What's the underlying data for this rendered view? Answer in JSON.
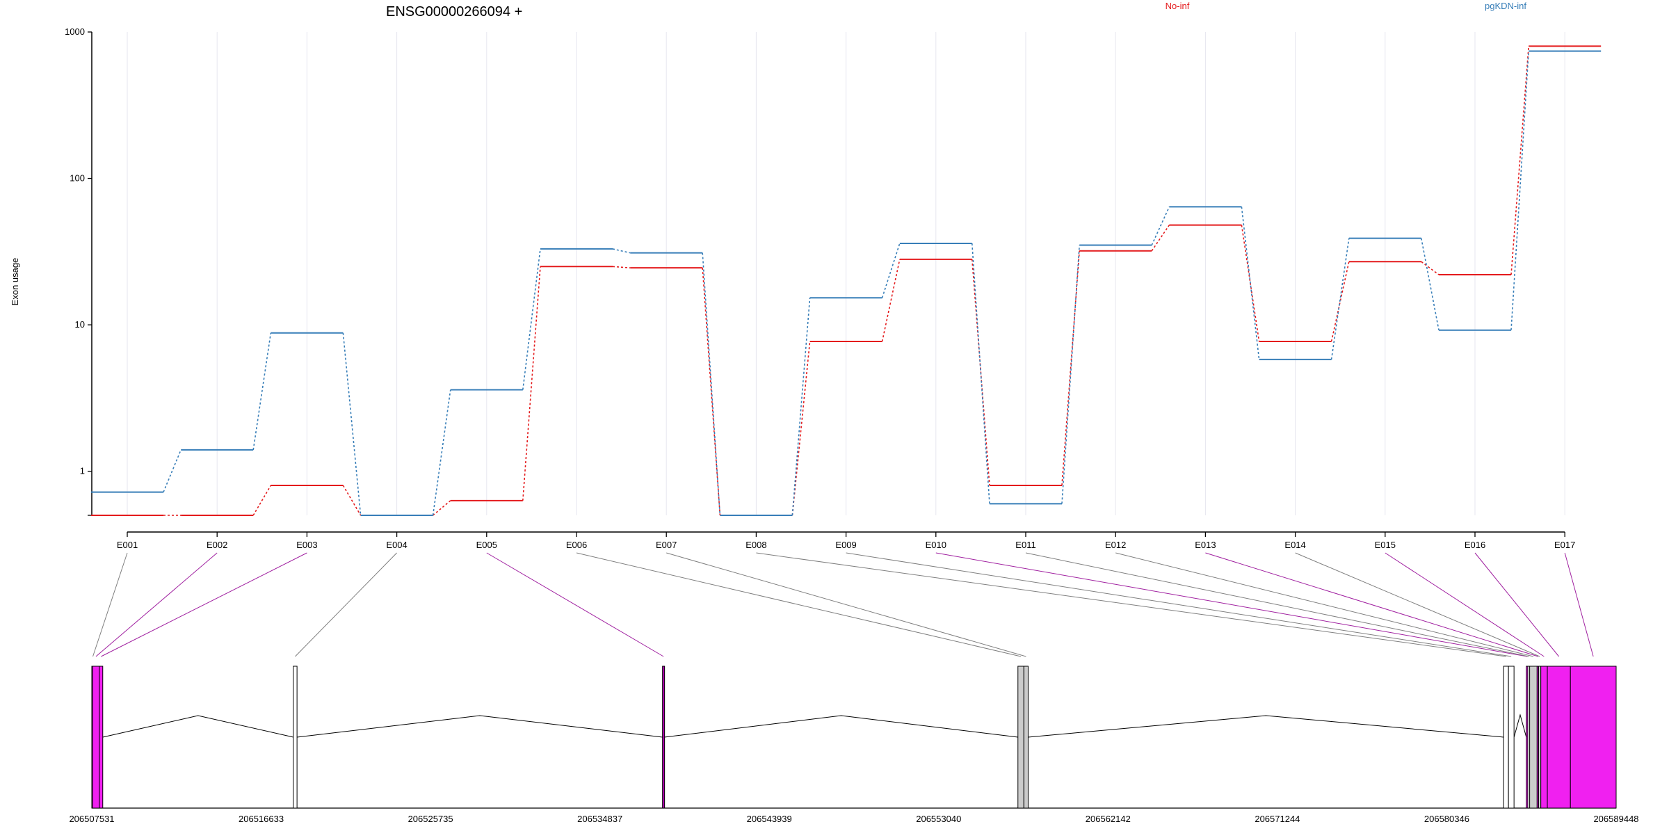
{
  "chart_data": {
    "type": "line",
    "title": "ENSG00000266094 +",
    "ylabel": "Exon usage",
    "xlabel": "",
    "y_scale": "log",
    "y_ticks": [
      1,
      10,
      100,
      1000
    ],
    "y_tick_labels": [
      "1",
      "10",
      "100",
      "1000"
    ],
    "ylim": [
      0.5,
      1000
    ],
    "grid": "vertical",
    "categories": [
      "E001",
      "E002",
      "E003",
      "E004",
      "E005",
      "E006",
      "E007",
      "E008",
      "E009",
      "E010",
      "E011",
      "E012",
      "E013",
      "E014",
      "E015",
      "E016",
      "E017"
    ],
    "series": [
      {
        "name": "No-inf",
        "color": "#e41a1c",
        "values": [
          0.5,
          0.5,
          0.8,
          0.5,
          0.63,
          25,
          24.5,
          0.5,
          7.7,
          28,
          0.8,
          32,
          48,
          7.7,
          27,
          22,
          800
        ]
      },
      {
        "name": "pgKDN-inf",
        "color": "#377eb8",
        "values": [
          0.72,
          1.4,
          8.8,
          0.5,
          3.6,
          33,
          31,
          0.5,
          15.3,
          36,
          0.6,
          35,
          64,
          5.8,
          39,
          9.2,
          740
        ]
      }
    ],
    "legend": "top",
    "gene_model": {
      "coord_labels": [
        "206507531",
        "206516633",
        "206525735",
        "206534837",
        "206543939",
        "206553040",
        "206562142",
        "206571244",
        "206580346",
        "206589448"
      ],
      "coord_range": [
        206507531,
        206589448
      ],
      "exons": [
        {
          "id": "E001",
          "start": 206507531,
          "end": 206507565,
          "fill": "#000000",
          "significant": false
        },
        {
          "id": "E002",
          "start": 206507565,
          "end": 206507940,
          "fill": "#f020f0",
          "significant": true
        },
        {
          "id": "E003",
          "start": 206507940,
          "end": 206508120,
          "fill": "#f020f0",
          "significant": true
        },
        {
          "id": "E004",
          "start": 206518360,
          "end": 206518560,
          "fill": "#ffffff",
          "significant": false
        },
        {
          "id": "E005",
          "start": 206538200,
          "end": 206538300,
          "fill": "#b000b0",
          "significant": true
        },
        {
          "id": "E006",
          "start": 206557300,
          "end": 206557620,
          "fill": "#cccccc",
          "significant": false
        },
        {
          "id": "E007",
          "start": 206557620,
          "end": 206557850,
          "fill": "#cccccc",
          "significant": false
        },
        {
          "id": "E008",
          "start": 206583400,
          "end": 206583660,
          "fill": "#ffffff",
          "significant": false
        },
        {
          "id": "E009",
          "start": 206583660,
          "end": 206583960,
          "fill": "#ffffff",
          "significant": false
        },
        {
          "id": "E010",
          "start": 206584620,
          "end": 206584700,
          "fill": "#f020f0",
          "significant": true
        },
        {
          "id": "E011",
          "start": 206584700,
          "end": 206584800,
          "fill": "#ffffff",
          "significant": false
        },
        {
          "id": "E012",
          "start": 206584800,
          "end": 206585200,
          "fill": "#cccccc",
          "significant": false
        },
        {
          "id": "E013",
          "start": 206585200,
          "end": 206585280,
          "fill": "#f020f0",
          "significant": true
        },
        {
          "id": "E014",
          "start": 206585280,
          "end": 206585400,
          "fill": "#cccccc",
          "significant": false
        },
        {
          "id": "E015",
          "start": 206585400,
          "end": 206585750,
          "fill": "#f020f0",
          "significant": true
        },
        {
          "id": "E016",
          "start": 206585750,
          "end": 206586990,
          "fill": "#f020f0",
          "significant": true
        },
        {
          "id": "E017",
          "start": 206586990,
          "end": 206589448,
          "fill": "#f020f0",
          "significant": true
        }
      ]
    }
  }
}
